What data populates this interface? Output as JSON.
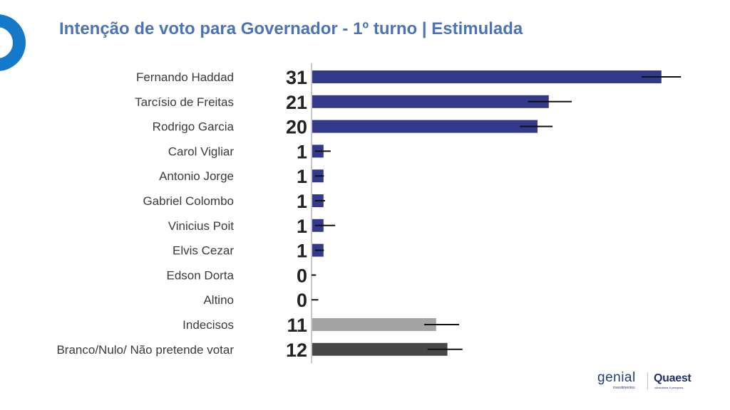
{
  "title": "Intenção de voto para Governador - 1º turno | Estimulada",
  "logos": {
    "genial": "genial",
    "genial_sub": "investimentos",
    "quaest": "Quaest",
    "quaest_sub": "consultoria & pesquisa"
  },
  "chart_data": {
    "type": "bar",
    "orientation": "horizontal",
    "title": "Intenção de voto para Governador - 1º turno | Estimulada",
    "xlabel": "",
    "ylabel": "",
    "xlim": [
      0,
      33
    ],
    "grid": false,
    "legend": "none",
    "categories": [
      "Fernando Haddad",
      "Tarcísio de Freitas",
      "Rodrigo Garcia",
      "Carol Vigliar",
      "Antonio Jorge",
      "Gabriel Colombo",
      "Vinicius Poit",
      "Elvis Cezar",
      "Edson Dorta",
      "Altino",
      "Indecisos",
      "Branco/Nulo/ Não pretende votar"
    ],
    "values": [
      31,
      21,
      20,
      1,
      1,
      1,
      1,
      1,
      0,
      0,
      11,
      12
    ],
    "error_low": [
      29.3,
      19.2,
      18.5,
      0.3,
      0.3,
      0.3,
      0.3,
      0.3,
      0,
      0,
      10,
      10.3
    ],
    "error_high": [
      32.8,
      23.1,
      21.4,
      1.7,
      1.1,
      1.2,
      2.1,
      1.1,
      0.4,
      0.6,
      13.1,
      13.4
    ],
    "value_labels": [
      "31",
      "21",
      "20",
      "1",
      "1",
      "1",
      "1",
      "1",
      "0",
      "0",
      "11",
      "12"
    ],
    "colors": [
      "#333a8b",
      "#333a8b",
      "#333a8b",
      "#333a8b",
      "#333a8b",
      "#333a8b",
      "#333a8b",
      "#333a8b",
      "#333a8b",
      "#333a8b",
      "#a3a3a3",
      "#474747"
    ],
    "title_color": "#4a74b7",
    "logo_color": "#1479c8"
  }
}
